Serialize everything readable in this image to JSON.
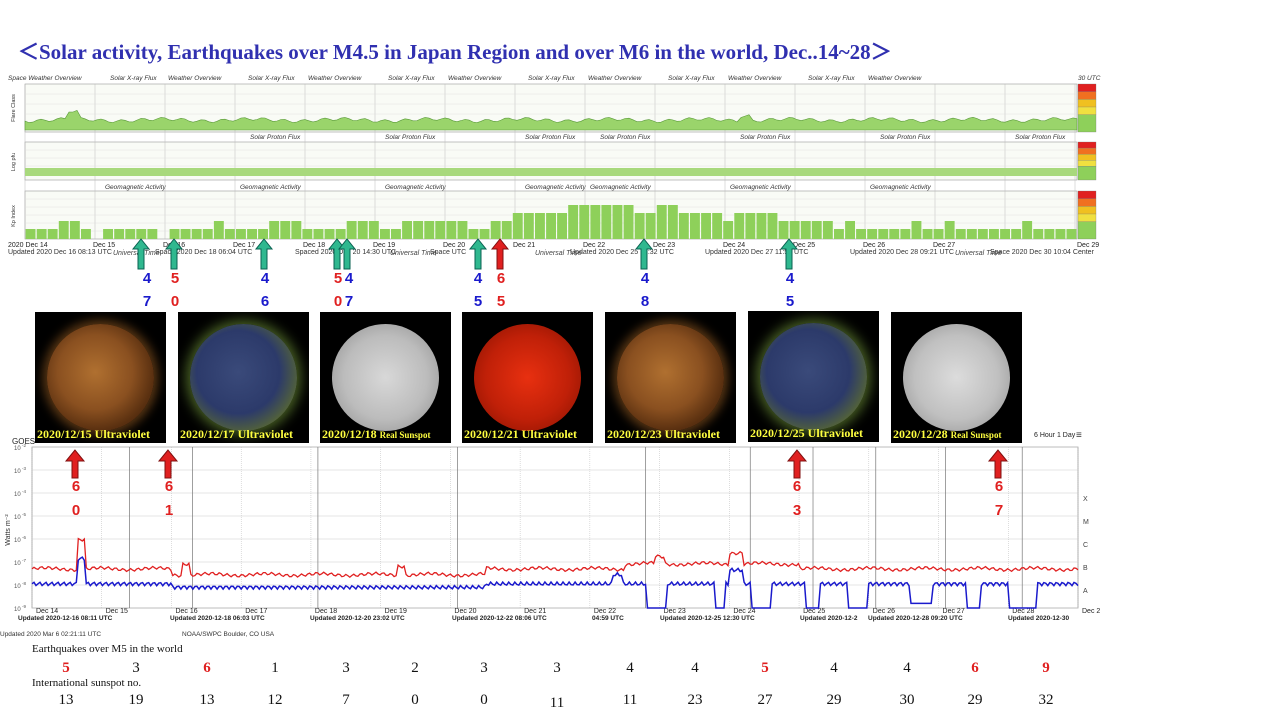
{
  "title": "＜Solar activity, Earthquakes over M4.5 in Japan Region and over M6 in the world,   Dec..14~28＞",
  "top_panel": {
    "header_labels": [
      "Space Weather Overview",
      "Solar X-ray Flux",
      "Weather Overview",
      "Solar X-ray Flux",
      "Weather Overview",
      "Solar X-ray Flux",
      "Weather Overview",
      "Solar X-ray Flux",
      "Weather Overview",
      "Solar X-ray Flux",
      "Weather Overview",
      "Solar X-ray Flux",
      "Weather Overview",
      "30 UTC"
    ],
    "row_labels": [
      "Flare Class",
      "Log pfu",
      "Kp Index"
    ],
    "proton_labels": [
      "Solar Proton Flux",
      "Solar Proton Flux",
      "Solar Proton Flux",
      "Solar Proton Flux",
      "Solar Proton Flux",
      "Solar Proton Flux",
      "Solar Proton Flux"
    ],
    "geomag_labels": [
      "Geomagnetic Activity",
      "Geomagnetic Activity",
      "Geomagnetic Activity",
      "Geomagnetic Activity",
      "Geomagnetic Activity",
      "Geomagnetic Activity",
      "Geomagnetic Activity"
    ],
    "date_labels": [
      "2020 Dec 14",
      "Dec 15",
      "Dec 16",
      "Dec 17",
      "Dec 18",
      "Dec 19",
      "Dec 20",
      "Dec 21",
      "Dec 22",
      "Dec 23",
      "Dec 24",
      "Dec 25",
      "Dec 26",
      "Dec 27",
      "Dec 29"
    ],
    "updated_labels": [
      "Updated 2020 Dec 16 08:13 UTC",
      "Space 2020 Dec 18 06:04 UTC",
      "Spaced 2020 Dec 20 14:30 UTC",
      "Space UTC",
      "Updated 2020 Dec 25 12:32 UTC",
      "Updated 2020 Dec 27 11:52 UTC",
      "Updated 2020 Dec 28 09:21 UTC",
      "Space 2020 Dec 30 10:04 Center"
    ],
    "universal_time": "Universal Time",
    "flare_scale": [
      "X",
      "M",
      "C",
      "B",
      "A"
    ]
  },
  "japan_quakes": [
    {
      "top": "4",
      "bottom": "7",
      "top_color": "#1a1acc",
      "bottom_color": "#1a1acc"
    },
    {
      "top": "5",
      "bottom": "0",
      "top_color": "#e02020",
      "bottom_color": "#e02020"
    },
    {
      "top": "4",
      "bottom": "6",
      "top_color": "#1a1acc",
      "bottom_color": "#1a1acc"
    },
    {
      "top": "5",
      "bottom": "0",
      "top_color": "#e02020",
      "bottom_color": "#e02020"
    },
    {
      "top": "4",
      "bottom": "7",
      "top_color": "#1a1acc",
      "bottom_color": "#1a1acc"
    },
    {
      "top": "4",
      "bottom": "5",
      "top_color": "#1a1acc",
      "bottom_color": "#1a1acc"
    },
    {
      "top": "6",
      "bottom": "5",
      "top_color": "#e02020",
      "bottom_color": "#e02020"
    },
    {
      "top": "4",
      "bottom": "8",
      "top_color": "#1a1acc",
      "bottom_color": "#1a1acc"
    },
    {
      "top": "4",
      "bottom": "5",
      "top_color": "#1a1acc",
      "bottom_color": "#1a1acc"
    }
  ],
  "sun_images": [
    {
      "caption": "2020/12/15 Ultraviolet",
      "small": ""
    },
    {
      "caption": "2020/12/17 Ultraviolet",
      "small": ""
    },
    {
      "caption": "2020/12/18 ",
      "small": "Real Sunspot"
    },
    {
      "caption": "2020/12/21 Ultraviolet",
      "small": ""
    },
    {
      "caption": "2020/12/23 Ultraviolet",
      "small": ""
    },
    {
      "caption": "2020/12/25 Ultraviolet",
      "small": ""
    },
    {
      "caption": "2020/12/28 ",
      "small": "Real Sunspot"
    }
  ],
  "xray_chart": {
    "title": "GOES",
    "ylabel": "Watts m⁻²",
    "zoom_text": "6 Hour  1 Day",
    "date_labels": [
      "Dec 14",
      "Dec 15",
      "Dec 16",
      "Dec 17",
      "Dec 18",
      "Dec 19",
      "Dec 20",
      "Dec 21",
      "Dec 22",
      "Dec 23",
      "Dec 24",
      "Dec 25",
      "Dec 26",
      "Dec 27",
      "Dec 28",
      "Dec 29"
    ],
    "updated_labels": [
      "Updated 2020-12-16 08:11 UTC",
      "Updated 2020-12-18 06:03 UTC",
      "Updated 2020-12-20 23:02 UTC",
      "Updated 2020-12-22 08:06 UTC",
      "04:59 UTC",
      "Updated 2020-12-25 12:30 UTC",
      "Updated 2020-12-2",
      "Updated 2020-12-28 09:20 UTC",
      "Updated 2020-12-30"
    ],
    "footer_left": "Updated 2020 Mar  6 02:21:11 UTC",
    "footer_right": "NOAA/SWPC Boulder, CO USA",
    "scale_labels": [
      "X",
      "M",
      "C",
      "B",
      "A"
    ]
  },
  "world_quakes": [
    {
      "top": "6",
      "bottom": "0"
    },
    {
      "top": "6",
      "bottom": "1"
    },
    {
      "top": "6",
      "bottom": "3"
    },
    {
      "top": "6",
      "bottom": "7"
    }
  ],
  "bottom_table": {
    "eq_label": "Earthquakes over M5 in the world",
    "sunspot_label": "International sunspot no.",
    "earthquakes": [
      {
        "v": "5",
        "c": "#e02020"
      },
      {
        "v": "3",
        "c": "#111111"
      },
      {
        "v": "6",
        "c": "#e02020"
      },
      {
        "v": "1",
        "c": "#111111"
      },
      {
        "v": "3",
        "c": "#111111"
      },
      {
        "v": "2",
        "c": "#111111"
      },
      {
        "v": "3",
        "c": "#111111"
      },
      {
        "v": "3",
        "c": "#111111"
      },
      {
        "v": "4",
        "c": "#111111"
      },
      {
        "v": "4",
        "c": "#111111"
      },
      {
        "v": "5",
        "c": "#e02020"
      },
      {
        "v": "4",
        "c": "#111111"
      },
      {
        "v": "4",
        "c": "#111111"
      },
      {
        "v": "6",
        "c": "#e02020"
      },
      {
        "v": "9",
        "c": "#e02020"
      }
    ],
    "sunspots": [
      "13",
      "19",
      "13",
      "12",
      "7",
      "0",
      "0",
      "11",
      "11",
      "23",
      "27",
      "29",
      "30",
      "29",
      "32"
    ]
  },
  "chart_data": {
    "type": "line",
    "x": [
      "Dec 14",
      "Dec 15",
      "Dec 16",
      "Dec 17",
      "Dec 18",
      "Dec 19",
      "Dec 20",
      "Dec 21",
      "Dec 22",
      "Dec 23",
      "Dec 24",
      "Dec 25",
      "Dec 26",
      "Dec 27",
      "Dec 28",
      "Dec 29"
    ],
    "ylim": [
      1e-09,
      0.01
    ],
    "yscale": "log",
    "scale_labels": [
      "X",
      "M",
      "C",
      "B",
      "A"
    ],
    "grid": true,
    "kp_index": [
      1,
      1,
      1,
      2,
      2,
      1,
      0,
      1,
      1,
      1,
      1,
      1,
      0,
      1,
      1,
      1,
      1,
      2,
      1,
      1,
      1,
      1,
      2,
      2,
      2,
      1,
      1,
      1,
      1,
      2,
      2,
      2,
      1,
      1,
      2,
      2,
      2,
      2,
      2,
      2,
      1,
      1,
      2,
      2,
      3,
      3,
      3,
      3,
      3,
      4,
      4,
      4,
      4,
      4,
      4,
      3,
      3,
      4,
      4,
      3,
      3,
      3,
      3,
      2,
      3,
      3,
      3,
      3,
      2,
      2,
      2,
      2,
      2,
      1,
      2,
      1,
      1,
      1,
      1,
      1,
      2,
      1,
      1,
      2,
      1,
      1,
      1,
      1,
      1,
      1,
      2,
      1,
      1,
      1,
      1
    ]
  },
  "colors": {
    "title": "#3030b0",
    "red_series": "#e02020",
    "blue_series": "#1a1acc",
    "kp_bar": "#8ed05a",
    "arrow_green": "#2fb88f",
    "arrow_red": "#e02020"
  }
}
